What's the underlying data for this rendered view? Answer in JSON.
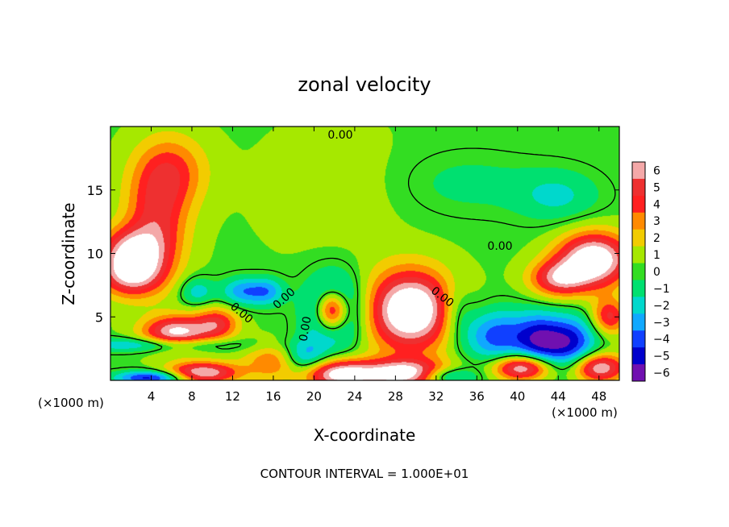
{
  "chart_data": {
    "type": "heatmap",
    "title": "zonal velocity",
    "xlabel": "X-coordinate",
    "ylabel": "Z-coordinate",
    "x_unit_note": "(×1000 m)",
    "x_unit_note_right": "(×1000 m)",
    "xlim": [
      0,
      50
    ],
    "ylim": [
      0,
      20
    ],
    "x_ticks": [
      4,
      8,
      12,
      16,
      20,
      24,
      28,
      32,
      36,
      40,
      44,
      48
    ],
    "x_tick_labels": [
      "4",
      "8",
      "12",
      "16",
      "20",
      "24",
      "28",
      "32",
      "36",
      "40",
      "44",
      "48"
    ],
    "y_ticks": [
      5,
      10,
      15
    ],
    "y_tick_labels": [
      "5",
      "10",
      "15"
    ],
    "colorbar": {
      "min": -6,
      "max": 6,
      "ticks": [
        6,
        5,
        4,
        3,
        2,
        1,
        0,
        -1,
        -2,
        -3,
        -4,
        -5,
        -6
      ],
      "tick_labels": [
        "6",
        "5",
        "4",
        "3",
        "2",
        "1",
        "0",
        "−1",
        "−2",
        "−3",
        "−4",
        "−5",
        "−6"
      ]
    },
    "contour_labels": [
      "0.00",
      "0.00",
      "0.00",
      "0.00",
      "0.00",
      "0.00"
    ],
    "footer": "CONTOUR INTERVAL = 1.000E+01",
    "features": [
      {
        "x": 4.5,
        "z": 12.5,
        "value": 4.2,
        "sx": 2.2,
        "sz": 3.0
      },
      {
        "x": 6.0,
        "z": 16.5,
        "value": 3.2,
        "sx": 2.5,
        "sz": 2.0
      },
      {
        "x": 2.0,
        "z": 10.5,
        "value": 4.0,
        "sx": 2.2,
        "sz": 1.2
      },
      {
        "x": 2.0,
        "z": 8.5,
        "value": 6.5,
        "sx": 2.2,
        "sz": 1.3
      },
      {
        "x": 6.5,
        "z": 3.8,
        "value": 6.5,
        "sx": 2.3,
        "sz": 0.9
      },
      {
        "x": 10.5,
        "z": 4.5,
        "value": 4.0,
        "sx": 1.5,
        "sz": 0.9
      },
      {
        "x": 4.0,
        "z": 2.8,
        "value": -3.0,
        "sx": 6.0,
        "sz": 0.4
      },
      {
        "x": 9.0,
        "z": 0.6,
        "value": 6.5,
        "sx": 2.5,
        "sz": 0.6
      },
      {
        "x": 4.0,
        "z": 0.2,
        "value": -5.5,
        "sx": 2.5,
        "sz": 0.4
      },
      {
        "x": 8.5,
        "z": 7.0,
        "value": -2.5,
        "sx": 1.2,
        "sz": 0.8
      },
      {
        "x": 13.0,
        "z": 7.0,
        "value": -3.5,
        "sx": 1.5,
        "sz": 0.8
      },
      {
        "x": 15.5,
        "z": 7.0,
        "value": -3.0,
        "sx": 1.2,
        "sz": 0.8
      },
      {
        "x": 22.0,
        "z": 5.5,
        "value": -5.5,
        "sx": 2.0,
        "sz": 2.0
      },
      {
        "x": 21.8,
        "z": 5.5,
        "value": 8.5,
        "sx": 1.1,
        "sz": 1.1
      },
      {
        "x": 16.0,
        "z": 1.5,
        "value": 3.0,
        "sx": 2.0,
        "sz": 1.0
      },
      {
        "x": 19.0,
        "z": 1.8,
        "value": -3.5,
        "sx": 1.5,
        "sz": 1.0
      },
      {
        "x": 22.5,
        "z": 0.5,
        "value": 7.0,
        "sx": 2.5,
        "sz": 0.8
      },
      {
        "x": 29.5,
        "z": 5.5,
        "value": 8.5,
        "sx": 3.0,
        "sz": 2.2
      },
      {
        "x": 34.0,
        "z": 5.5,
        "value": -2.0,
        "sx": 1.2,
        "sz": 1.5
      },
      {
        "x": 29.0,
        "z": 0.5,
        "value": 7.0,
        "sx": 3.0,
        "sz": 0.8
      },
      {
        "x": 33.0,
        "z": 0.3,
        "value": -4.0,
        "sx": 2.0,
        "sz": 0.5
      },
      {
        "x": 38.0,
        "z": 3.5,
        "value": -4.5,
        "sx": 2.5,
        "sz": 1.5
      },
      {
        "x": 42.0,
        "z": 3.2,
        "value": -3.5,
        "sx": 1.5,
        "sz": 1.5
      },
      {
        "x": 45.0,
        "z": 3.0,
        "value": -5.5,
        "sx": 2.0,
        "sz": 1.5
      },
      {
        "x": 40.5,
        "z": 1.0,
        "value": 7.0,
        "sx": 2.0,
        "sz": 0.7
      },
      {
        "x": 48.0,
        "z": 1.0,
        "value": 6.5,
        "sx": 1.8,
        "sz": 0.8
      },
      {
        "x": 47.5,
        "z": 9.5,
        "value": 8.0,
        "sx": 2.5,
        "sz": 1.5
      },
      {
        "x": 44.0,
        "z": 8.0,
        "value": 5.0,
        "sx": 2.0,
        "sz": 1.0
      },
      {
        "x": 49.0,
        "z": 5.0,
        "value": 4.5,
        "sx": 1.2,
        "sz": 1.0
      },
      {
        "x": 44.0,
        "z": 14.5,
        "value": -2.0,
        "sx": 3.0,
        "sz": 1.5
      },
      {
        "x": 35.0,
        "z": 15.5,
        "value": -1.2,
        "sx": 5.0,
        "sz": 1.8
      },
      {
        "x": 22.0,
        "z": 15.0,
        "value": 0.8,
        "sx": 5.0,
        "sz": 3.5
      }
    ]
  }
}
